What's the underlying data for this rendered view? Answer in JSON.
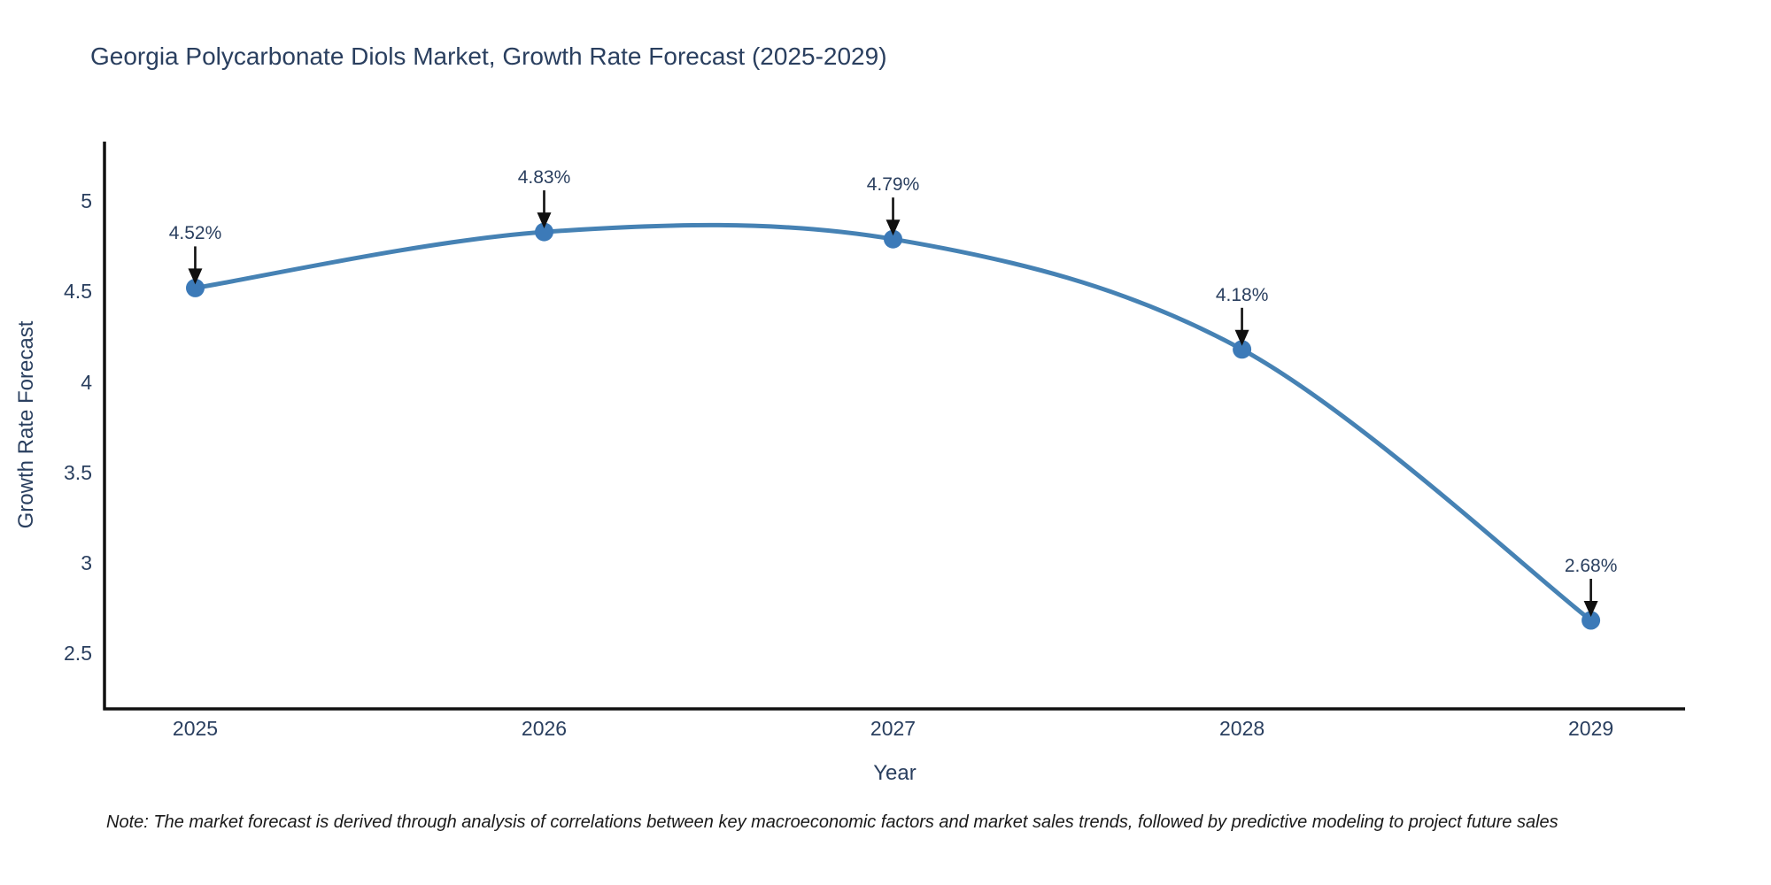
{
  "chart_data": {
    "type": "line",
    "title": "Georgia Polycarbonate Diols Market, Growth Rate Forecast (2025-2029)",
    "xlabel": "Year",
    "ylabel": "Growth Rate Forecast",
    "x": [
      2025,
      2026,
      2027,
      2028,
      2029
    ],
    "series": [
      {
        "name": "Growth Rate Forecast",
        "values": [
          4.52,
          4.83,
          4.79,
          4.18,
          2.68
        ]
      }
    ],
    "point_labels": [
      "4.52%",
      "4.83%",
      "4.79%",
      "4.18%",
      "2.68%"
    ],
    "x_tick_labels": [
      "2025",
      "2026",
      "2027",
      "2028",
      "2029"
    ],
    "y_ticks": [
      2.5,
      3,
      3.5,
      4,
      4.5,
      5
    ],
    "y_tick_labels": [
      "2.5",
      "3",
      "3.5",
      "4",
      "4.5",
      "5"
    ],
    "xlim": [
      2024.74,
      2029.27
    ],
    "ylim": [
      2.19,
      5.33
    ],
    "grid": false,
    "legend": "none",
    "line_shape": "spline",
    "annotations_style": "label-with-down-arrow",
    "colors": {
      "line": "#4682b4",
      "marker": "#3c7ab8",
      "text": "#2a3f5f",
      "axis": "#101010",
      "arrow": "#101010",
      "note_text": "#1a1a1a",
      "background": "#ffffff"
    },
    "note": "Note: The market forecast is derived through analysis of correlations between key macroeconomic factors and market sales trends, followed by predictive modeling to project future sales"
  }
}
